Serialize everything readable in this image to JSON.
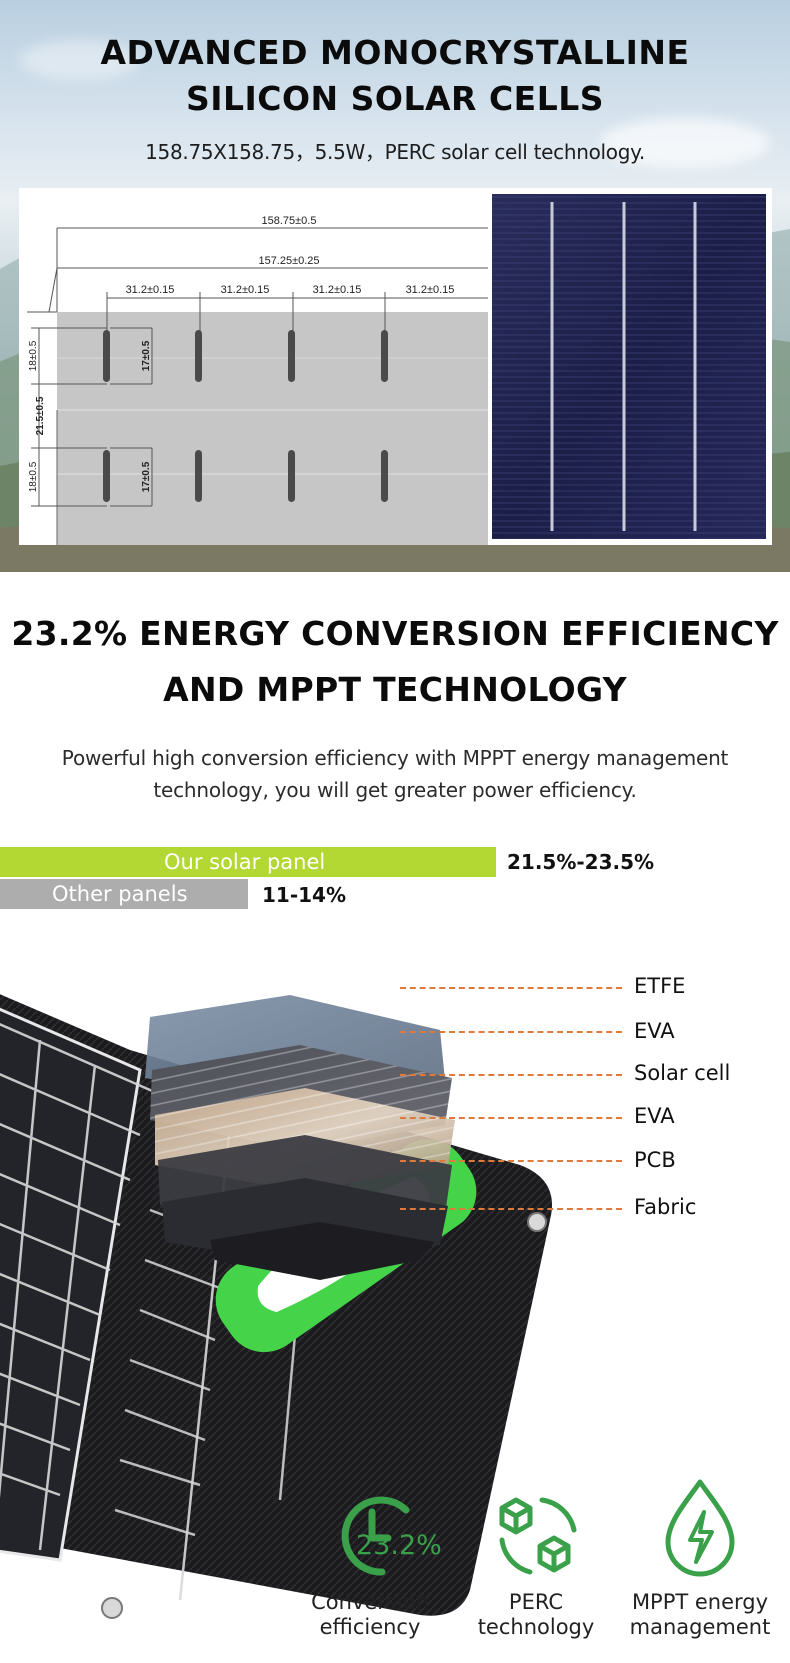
{
  "hero": {
    "title_line1": "ADVANCED MONOCRYSTALLINE",
    "title_line2": "SILICON SOLAR CELLS",
    "subtitle": "158.75X158.75，5.5W，PERC solar cell technology."
  },
  "diagram": {
    "width_outer": "158.75±0.5",
    "width_inner": "157.25±0.25",
    "segment": "31.2±0.15",
    "v_top": "18±0.5",
    "v_mid": "21.5±0.5",
    "v_bottom": "18±0.5",
    "bar_len": "17±0.5"
  },
  "efficiency": {
    "title_line1": "23.2% ENERGY CONVERSION EFFICIENCY",
    "title_line2": "AND MPPT TECHNOLOGY",
    "desc_line1": "Powerful high conversion efficiency with MPPT energy management",
    "desc_line2": "technology, you will get greater power efficiency."
  },
  "comparison": [
    {
      "label": "Our solar panel",
      "value": "21.5%-23.5%",
      "color": "#b3d733",
      "relative_length": 1.0
    },
    {
      "label": "Other panels",
      "value": "11-14%",
      "color": "#adadad",
      "relative_length": 0.5
    }
  ],
  "layers": [
    "ETFE",
    "EVA",
    "Solar cell",
    "EVA",
    "PCB",
    "Fabric"
  ],
  "features": [
    {
      "icon": "clock-efficiency-icon",
      "badge": "23.2%",
      "line1": "Conversion",
      "line2": "efficiency"
    },
    {
      "icon": "cubes-cycle-icon",
      "line1": "PERC",
      "line2": "technology"
    },
    {
      "icon": "drop-bolt-icon",
      "line1": "MPPT energy",
      "line2": "management"
    }
  ],
  "colors": {
    "accent_green": "#b3d733",
    "icon_green": "#3aa14a",
    "handle_green": "#45d34a",
    "dash_orange": "#e07a3a",
    "grey": "#adadad"
  }
}
